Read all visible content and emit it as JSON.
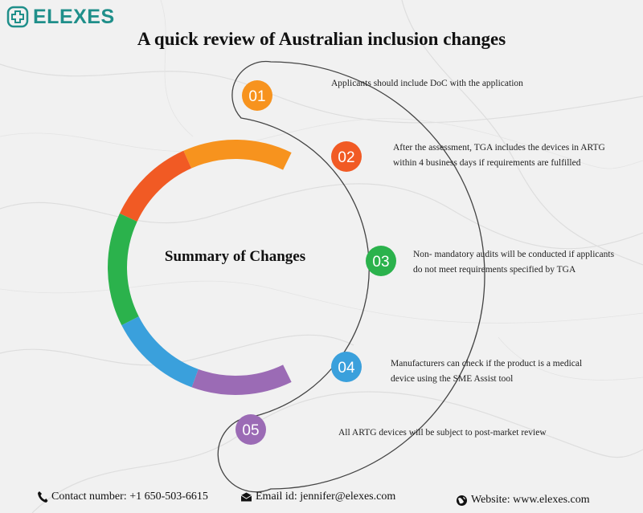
{
  "brand": {
    "name": "ELEXES",
    "logo_icon": "medical-cross-icon",
    "color": "#1f8f8a"
  },
  "title": "A quick review of Australian inclusion changes",
  "center_label": "Summary of Changes",
  "steps": [
    {
      "number": "01",
      "color": "#f7931e",
      "text_lines": [
        "Applicants should include DoC with the application"
      ]
    },
    {
      "number": "02",
      "color": "#f15a24",
      "text_lines": [
        "After the assessment, TGA includes the devices in ARTG",
        "within 4 business days if requirements are fulfilled"
      ]
    },
    {
      "number": "03",
      "color": "#2bb24c",
      "text_lines": [
        "Non- mandatory audits will be conducted if applicants",
        "do not meet requirements specified by TGA"
      ]
    },
    {
      "number": "04",
      "color": "#3aa0dc",
      "text_lines": [
        "Manufacturers can check if the product is a medical",
        "device using the SME Assist tool"
      ]
    },
    {
      "number": "05",
      "color": "#9b6bb5",
      "text_lines": [
        "All ARTG devices will be subject to post-market review"
      ]
    }
  ],
  "ring_segment_colors": [
    "#f7931e",
    "#f15a24",
    "#2bb24c",
    "#3aa0dc",
    "#9b6bb5"
  ],
  "footer": {
    "contact": {
      "icon": "phone-icon",
      "label": "Contact number: +1 650-503-6615"
    },
    "email": {
      "icon": "envelope-icon",
      "label": "Email id: jennifer@elexes.com"
    },
    "website": {
      "icon": "globe-icon",
      "label": "Website: www.elexes.com"
    }
  }
}
